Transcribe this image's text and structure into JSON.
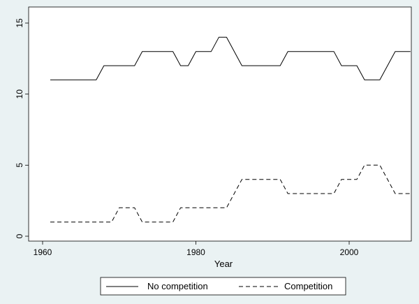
{
  "chart_data": {
    "type": "line",
    "xlabel": "Year",
    "ylabel": "",
    "xlim": [
      1960,
      2009
    ],
    "ylim": [
      0,
      15
    ],
    "x_ticks": [
      1960,
      1980,
      2000
    ],
    "y_ticks": [
      0,
      5,
      10,
      15
    ],
    "grid": false,
    "legend_position": "bottom",
    "series": [
      {
        "name": "No competition",
        "style": "solid",
        "x": [
          1961,
          1967,
          1968,
          1972,
          1973,
          1977,
          1978,
          1979,
          1980,
          1982,
          1983,
          1984,
          1986,
          1991,
          1992,
          1998,
          1999,
          2001,
          2002,
          2004,
          2006,
          2008
        ],
        "y": [
          11,
          11,
          12,
          12,
          13,
          13,
          12,
          12,
          13,
          13,
          14,
          14,
          12,
          12,
          13,
          13,
          12,
          12,
          11,
          11,
          13,
          13
        ]
      },
      {
        "name": "Competition",
        "style": "dashed",
        "x": [
          1961,
          1969,
          1970,
          1972,
          1973,
          1976,
          1977,
          1978,
          1979,
          1984,
          1986,
          1991,
          1992,
          1998,
          1999,
          2001,
          2002,
          2004,
          2006,
          2008
        ],
        "y": [
          1,
          1,
          2,
          2,
          1,
          1,
          1,
          2,
          2,
          2,
          4,
          4,
          3,
          3,
          4,
          4,
          5,
          5,
          3,
          3
        ]
      }
    ]
  }
}
